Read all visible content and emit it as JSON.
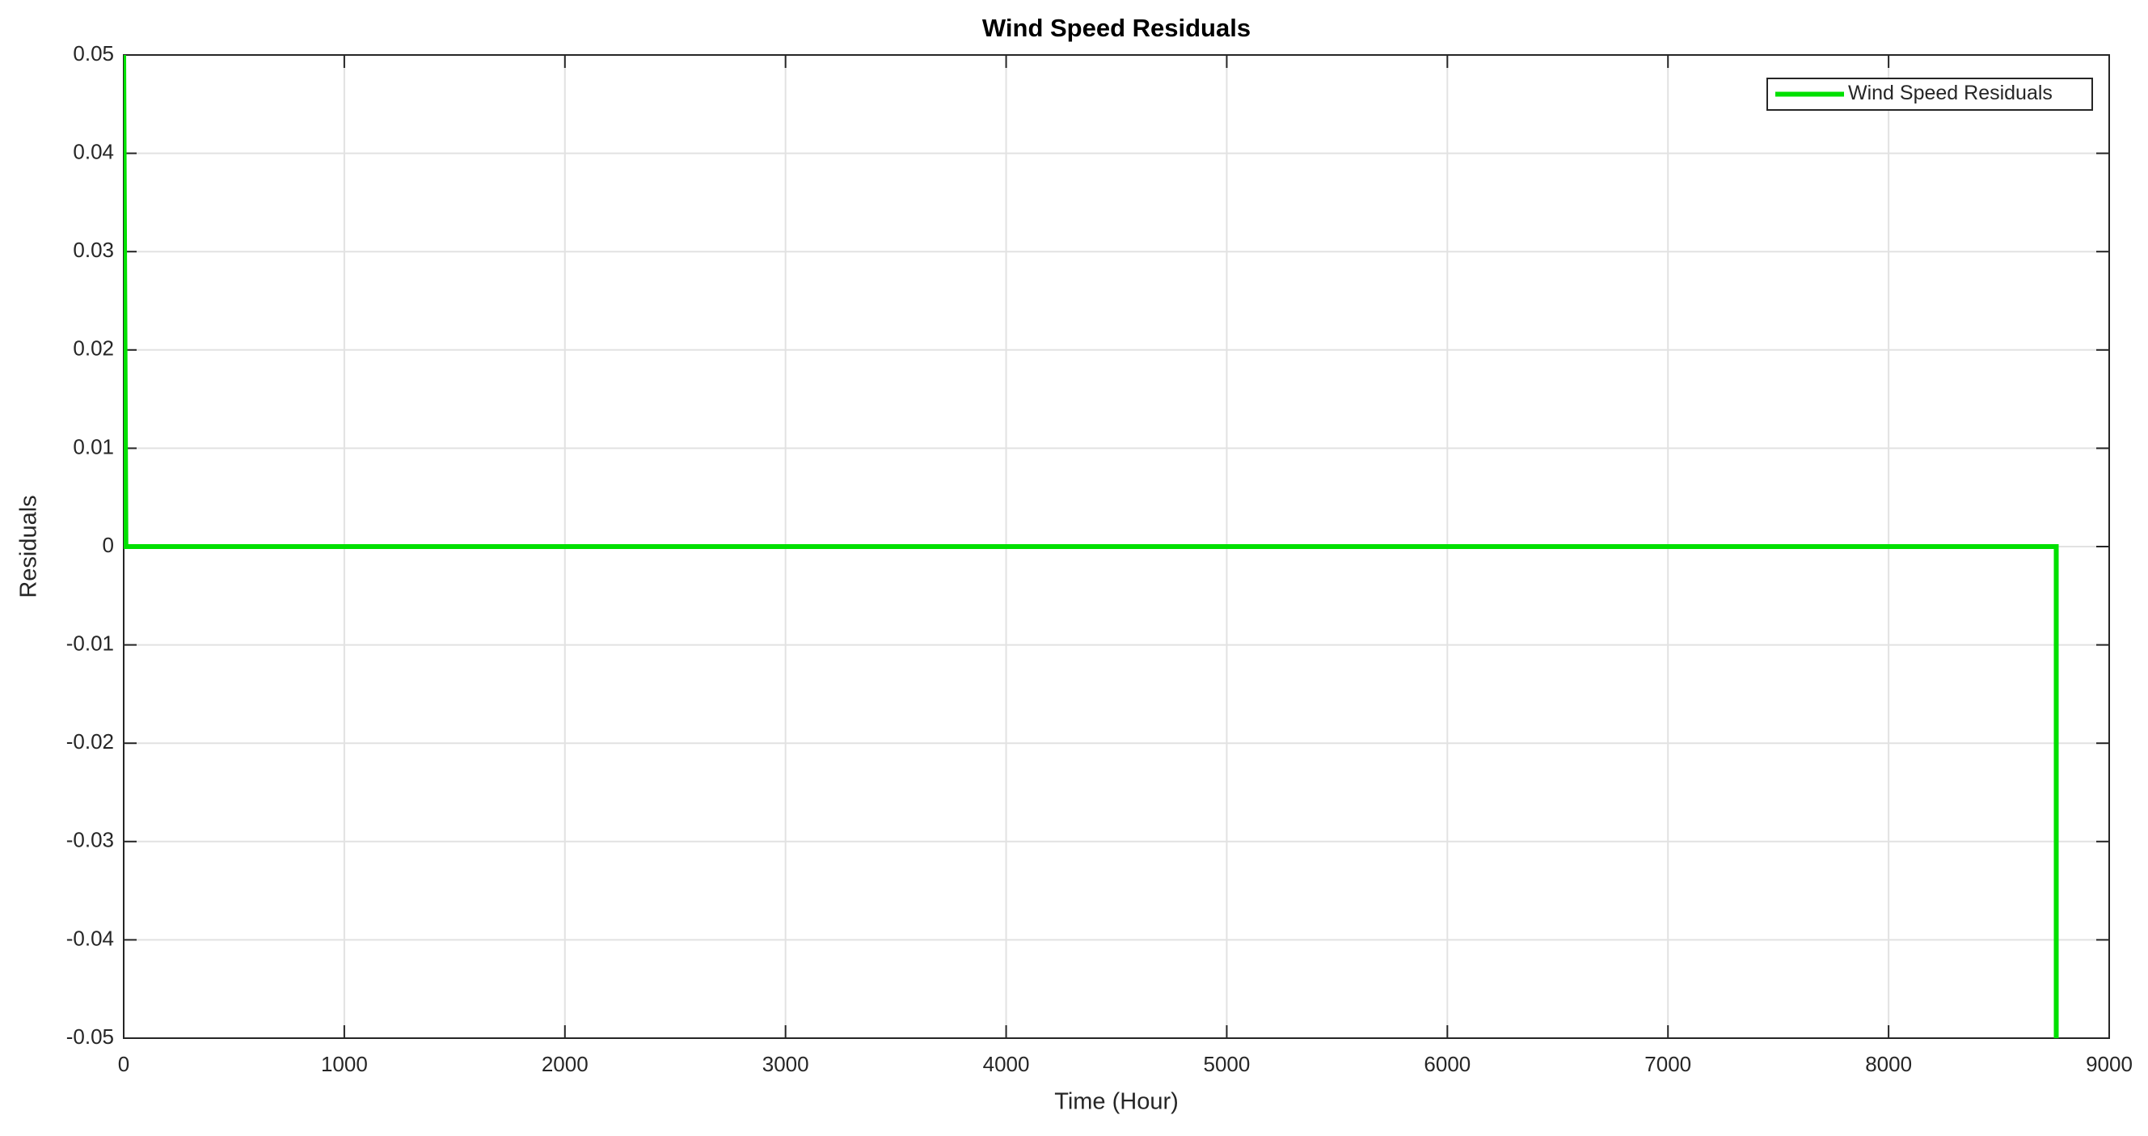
{
  "chart_data": {
    "type": "line",
    "title": "Wind Speed Residuals",
    "x_label": "Time (Hour)",
    "y_label": "Residuals",
    "x": [
      0,
      10,
      8760,
      8760
    ],
    "series": [
      {
        "name": "Wind Speed Residuals",
        "color": "#00e000",
        "values": [
          0.05,
          0,
          0,
          -0.05
        ]
      }
    ],
    "xlim": [
      0,
      9000
    ],
    "xticks": [
      0,
      1000,
      2000,
      3000,
      4000,
      5000,
      6000,
      7000,
      8000,
      9000
    ],
    "ylim": [
      -0.05,
      0.05
    ],
    "yticks": [
      -0.05,
      -0.04,
      -0.03,
      -0.02,
      -0.01,
      0,
      0.01,
      0.02,
      0.03,
      0.04,
      0.05
    ],
    "grid": true,
    "legend": "upper right"
  }
}
